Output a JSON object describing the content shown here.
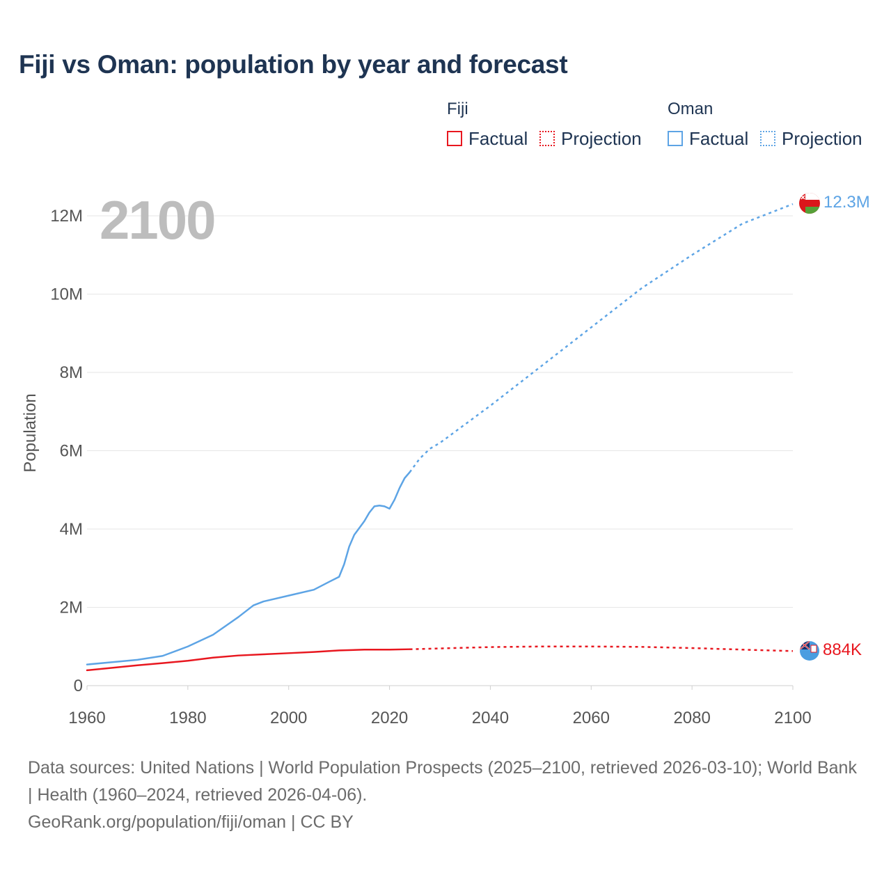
{
  "title": "Fiji vs Oman: population by year and forecast",
  "legend": {
    "groups": [
      {
        "name": "Fiji",
        "color": "#e8171f",
        "factual_label": "Factual",
        "projection_label": "Projection"
      },
      {
        "name": "Oman",
        "color": "#5da4e5",
        "factual_label": "Factual",
        "projection_label": "Projection"
      }
    ]
  },
  "footer": {
    "sources": "Data sources: United Nations | World Population Prospects (2025–2100, retrieved 2026-03-10); World Bank | Health (1960–2024, retrieved 2026-04-06).",
    "credit": "GeoRank.org/population/fiji/oman | CC BY"
  },
  "chart_data": {
    "type": "line",
    "title": "Fiji vs Oman: population by year and forecast",
    "xlabel": "",
    "ylabel": "Population",
    "year_watermark": "2100",
    "xlim": [
      1960,
      2100
    ],
    "ylim": [
      0,
      13000000
    ],
    "x_ticks": [
      1960,
      1980,
      2000,
      2020,
      2040,
      2060,
      2080,
      2100
    ],
    "y_ticks": [
      {
        "value": 0,
        "label": "0"
      },
      {
        "value": 2000000,
        "label": "2M"
      },
      {
        "value": 4000000,
        "label": "4M"
      },
      {
        "value": 6000000,
        "label": "6M"
      },
      {
        "value": 8000000,
        "label": "8M"
      },
      {
        "value": 10000000,
        "label": "10M"
      },
      {
        "value": 12000000,
        "label": "12M"
      }
    ],
    "grid": true,
    "series": [
      {
        "name": "Fiji",
        "color": "#e8171f",
        "end_label": "884K",
        "flag_icon": "fiji-flag-icon",
        "factual": {
          "x": [
            1960,
            1965,
            1970,
            1975,
            1980,
            1985,
            1990,
            1995,
            2000,
            2005,
            2010,
            2015,
            2020,
            2024
          ],
          "y": [
            393000,
            455000,
            520000,
            575000,
            635000,
            715000,
            770000,
            800000,
            830000,
            860000,
            900000,
            920000,
            920000,
            930000
          ]
        },
        "projection": {
          "x": [
            2024,
            2030,
            2040,
            2050,
            2060,
            2070,
            2080,
            2090,
            2100
          ],
          "y": [
            930000,
            950000,
            985000,
            1000000,
            1000000,
            990000,
            960000,
            920000,
            884000
          ]
        }
      },
      {
        "name": "Oman",
        "color": "#5da4e5",
        "end_label": "12.3M",
        "flag_icon": "oman-flag-icon",
        "factual": {
          "x": [
            1960,
            1965,
            1970,
            1975,
            1980,
            1985,
            1990,
            1993,
            1995,
            2000,
            2005,
            2008,
            2010,
            2011,
            2012,
            2013,
            2015,
            2016,
            2017,
            2018,
            2019,
            2020,
            2021,
            2022,
            2023,
            2024
          ],
          "y": [
            540000,
            600000,
            660000,
            760000,
            1000000,
            1300000,
            1750000,
            2050000,
            2150000,
            2300000,
            2450000,
            2650000,
            2780000,
            3100000,
            3550000,
            3850000,
            4200000,
            4420000,
            4580000,
            4600000,
            4580000,
            4520000,
            4750000,
            5050000,
            5300000,
            5450000
          ]
        },
        "projection": {
          "x": [
            2024,
            2026,
            2028,
            2030,
            2040,
            2050,
            2060,
            2070,
            2080,
            2090,
            2100
          ],
          "y": [
            5450000,
            5800000,
            6050000,
            6200000,
            7150000,
            8150000,
            9150000,
            10150000,
            11000000,
            11800000,
            12300000
          ]
        }
      }
    ]
  }
}
